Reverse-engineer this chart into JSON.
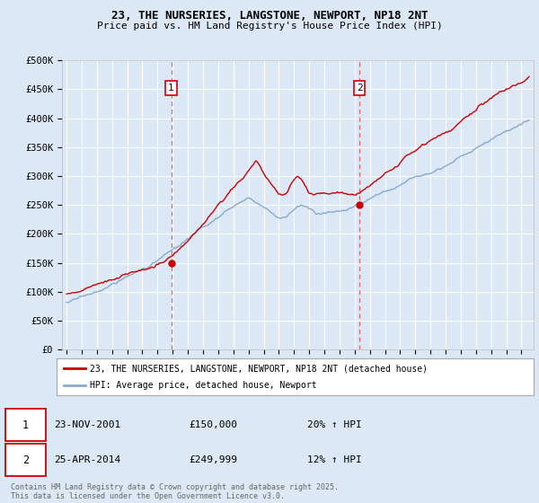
{
  "title": "23, THE NURSERIES, LANGSTONE, NEWPORT, NP18 2NT",
  "subtitle": "Price paid vs. HM Land Registry's House Price Index (HPI)",
  "background_color": "#dce8f5",
  "plot_bg_color": "#dce8f5",
  "ylabel_ticks": [
    "£0",
    "£50K",
    "£100K",
    "£150K",
    "£200K",
    "£250K",
    "£300K",
    "£350K",
    "£400K",
    "£450K",
    "£500K"
  ],
  "ylim": [
    0,
    500000
  ],
  "xlim_start": 1994.7,
  "xlim_end": 2025.8,
  "sale1_date": 2001.9,
  "sale1_price": 150000,
  "sale1_label": "1",
  "sale2_date": 2014.32,
  "sale2_price": 249999,
  "sale2_label": "2",
  "legend_entry1": "23, THE NURSERIES, LANGSTONE, NEWPORT, NP18 2NT (detached house)",
  "legend_entry2": "HPI: Average price, detached house, Newport",
  "annotation1_date": "23-NOV-2001",
  "annotation1_price": "£150,000",
  "annotation1_hpi": "20% ↑ HPI",
  "annotation2_date": "25-APR-2014",
  "annotation2_price": "£249,999",
  "annotation2_hpi": "12% ↑ HPI",
  "footer": "Contains HM Land Registry data © Crown copyright and database right 2025.\nThis data is licensed under the Open Government Licence v3.0.",
  "line_color_red": "#cc0000",
  "line_color_blue": "#88aacc"
}
